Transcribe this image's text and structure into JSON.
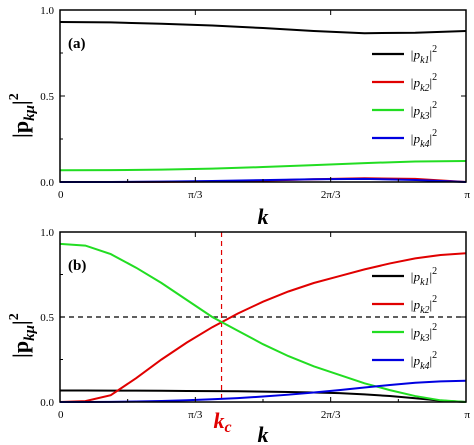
{
  "chart_data": [
    {
      "type": "line",
      "panel_label": "(a)",
      "xlabel": "k",
      "ylabel": "|p",
      "ylabel_sub": "kμ",
      "ylabel_sup": "2",
      "xlim": [
        0,
        3.14159
      ],
      "ylim": [
        0,
        1.0
      ],
      "xticks": [
        0,
        1.0472,
        2.0944,
        3.14159
      ],
      "xtick_labels": [
        "0",
        "π/3",
        "2π/3",
        "π"
      ],
      "yticks": [
        0,
        0.5,
        1.0
      ],
      "ytick_labels": [
        "0.0",
        "0.5",
        "1.0"
      ],
      "legend": "right",
      "x": [
        0,
        0.3927,
        0.7854,
        1.1781,
        1.5708,
        1.9635,
        2.3562,
        2.7489,
        3.14159
      ],
      "series": [
        {
          "name": "|p",
          "sub": "k1",
          "sup": "2",
          "color": "#000000",
          "values": [
            0.93,
            0.928,
            0.92,
            0.91,
            0.895,
            0.878,
            0.865,
            0.868,
            0.878
          ]
        },
        {
          "name": "|p",
          "sub": "k2",
          "sup": "2",
          "color": "#e00000",
          "values": [
            0.0,
            0.0,
            0.001,
            0.003,
            0.008,
            0.016,
            0.022,
            0.018,
            0.0
          ]
        },
        {
          "name": "|p",
          "sub": "k3",
          "sup": "2",
          "color": "#22dd22",
          "values": [
            0.068,
            0.069,
            0.072,
            0.078,
            0.087,
            0.098,
            0.11,
            0.119,
            0.122
          ]
        },
        {
          "name": "|p",
          "sub": "k4",
          "sup": "2",
          "color": "#0000e0",
          "values": [
            0.0,
            0.0,
            0.002,
            0.006,
            0.011,
            0.016,
            0.018,
            0.012,
            0.0
          ]
        }
      ]
    },
    {
      "type": "line",
      "panel_label": "(b)",
      "xlabel": "k",
      "ylabel": "|p",
      "ylabel_sub": "kμ",
      "ylabel_sup": "2",
      "xlim": [
        0,
        3.14159
      ],
      "ylim": [
        0,
        1.0
      ],
      "xticks": [
        0,
        1.0472,
        2.0944,
        3.14159
      ],
      "xtick_labels": [
        "0",
        "π/3",
        "2π/3",
        "π"
      ],
      "yticks": [
        0,
        0.5,
        1.0
      ],
      "ytick_labels": [
        "0.0",
        "0.5",
        "1.0"
      ],
      "legend": "right",
      "hline": 0.5,
      "vline": 1.25,
      "vline_label": "k",
      "vline_label_sub": "c",
      "x": [
        0,
        0.1963,
        0.3927,
        0.589,
        0.7854,
        0.9817,
        1.1781,
        1.3744,
        1.5708,
        1.7671,
        1.9635,
        2.1598,
        2.3562,
        2.5525,
        2.7489,
        2.9452,
        3.14159
      ],
      "series": [
        {
          "name": "|p",
          "sub": "k1",
          "sup": "2",
          "color": "#000000",
          "values": [
            0.068,
            0.068,
            0.067,
            0.067,
            0.066,
            0.065,
            0.064,
            0.063,
            0.061,
            0.059,
            0.056,
            0.052,
            0.045,
            0.035,
            0.022,
            0.008,
            0.0
          ]
        },
        {
          "name": "|p",
          "sub": "k2",
          "sup": "2",
          "color": "#e00000",
          "values": [
            0.0,
            0.005,
            0.04,
            0.14,
            0.25,
            0.35,
            0.44,
            0.52,
            0.59,
            0.65,
            0.7,
            0.74,
            0.78,
            0.815,
            0.845,
            0.865,
            0.875
          ]
        },
        {
          "name": "|p",
          "sub": "k3",
          "sup": "2",
          "color": "#22dd22",
          "values": [
            0.93,
            0.92,
            0.87,
            0.79,
            0.7,
            0.6,
            0.5,
            0.42,
            0.34,
            0.27,
            0.21,
            0.16,
            0.11,
            0.07,
            0.035,
            0.01,
            0.0
          ]
        },
        {
          "name": "|p",
          "sub": "k4",
          "sup": "2",
          "color": "#0000e0",
          "values": [
            0.0,
            0.0,
            0.001,
            0.003,
            0.006,
            0.01,
            0.016,
            0.023,
            0.032,
            0.043,
            0.056,
            0.07,
            0.085,
            0.1,
            0.113,
            0.121,
            0.125
          ]
        }
      ]
    }
  ]
}
